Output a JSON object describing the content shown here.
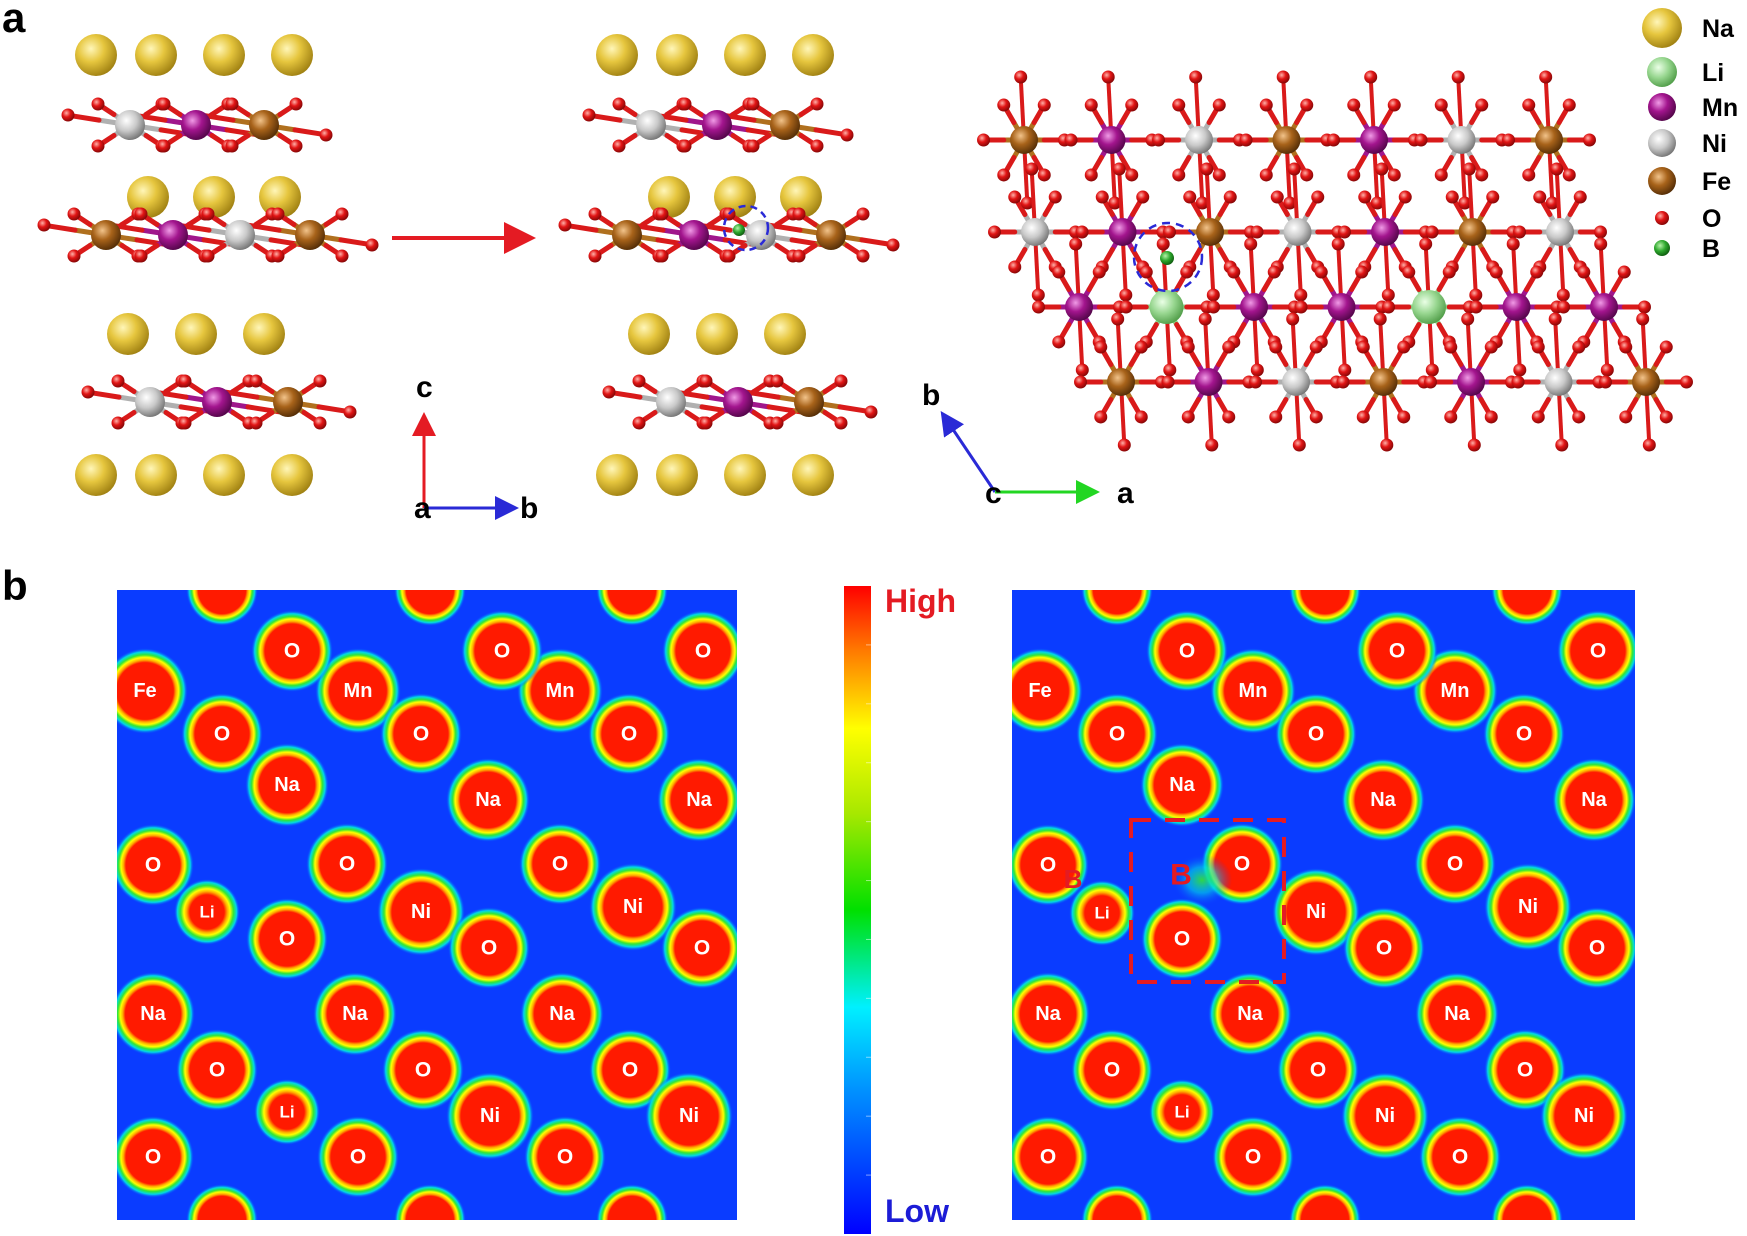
{
  "panels": {
    "a": {
      "label": "a"
    },
    "b": {
      "label": "b"
    }
  },
  "axes": {
    "side_view": {
      "up": "c",
      "origin": "a",
      "right": "b"
    },
    "top_view": {
      "up": "b",
      "origin": "c",
      "right": "a"
    }
  },
  "legend": [
    {
      "element": "Na",
      "color": "#e3c440"
    },
    {
      "element": "Li",
      "color": "#8fd68a"
    },
    {
      "element": "Mn",
      "color": "#a0168c"
    },
    {
      "element": "Ni",
      "color": "#c8c8c8"
    },
    {
      "element": "Fe",
      "color": "#a9641a"
    },
    {
      "element": "O",
      "color": "#e01010"
    },
    {
      "element": "B",
      "color": "#2fa82f"
    }
  ],
  "colorbar": {
    "high": "High",
    "low": "Low",
    "high_color": "#e41b23",
    "low_color": "#1c1cd6"
  },
  "density_map_left": {
    "atoms": [
      "Fe",
      "Mn",
      "Mn",
      "O",
      "O",
      "O",
      "O",
      "O",
      "O",
      "Na",
      "Na",
      "Na",
      "O",
      "O",
      "O",
      "Li",
      "O",
      "Ni",
      "O",
      "Ni",
      "O",
      "Na",
      "Na",
      "Na",
      "O",
      "O",
      "O",
      "Li",
      "Ni",
      "Ni",
      "O",
      "O",
      "O"
    ]
  },
  "density_map_right": {
    "atoms": [
      "Fe",
      "Mn",
      "Mn",
      "O",
      "O",
      "O",
      "O",
      "O",
      "O",
      "Na",
      "Na",
      "Na",
      "O",
      "O",
      "O",
      "Li",
      "O",
      "Ni",
      "O",
      "Ni",
      "O",
      "Na",
      "Na",
      "Na",
      "O",
      "O",
      "O",
      "Li",
      "Ni",
      "Ni",
      "O",
      "O",
      "O"
    ],
    "dopant_labels": [
      "B",
      "B"
    ]
  }
}
